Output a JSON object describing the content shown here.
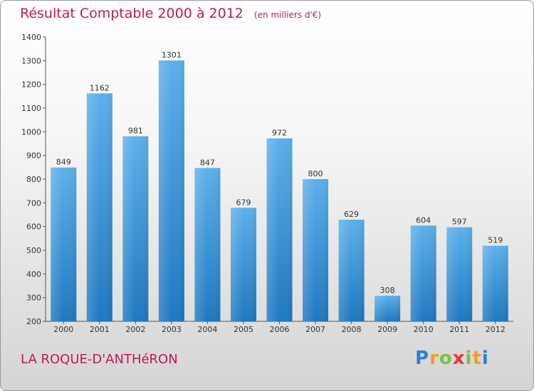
{
  "chart_data": {
    "type": "bar",
    "title": "Résultat Comptable 2000 à 2012",
    "subtitle": "(en milliers d'€)",
    "categories": [
      "2000",
      "2001",
      "2002",
      "2003",
      "2004",
      "2005",
      "2006",
      "2007",
      "2008",
      "2009",
      "2010",
      "2011",
      "2012"
    ],
    "values": [
      849,
      1162,
      981,
      1301,
      847,
      679,
      972,
      800,
      629,
      308,
      604,
      597,
      519
    ],
    "ylim": [
      200,
      1400
    ],
    "yticks": [
      200,
      300,
      400,
      500,
      600,
      700,
      800,
      900,
      1000,
      1100,
      1200,
      1300,
      1400
    ],
    "data_labels": true,
    "grid": false,
    "bar_color": "#3d98de",
    "bar_color_light": "#5db0ea",
    "bar_color_dark": "#1f78c0"
  },
  "footer": {
    "town": "LA ROQUE-D'ANTHéRON"
  },
  "logo": {
    "letters": [
      {
        "ch": "P",
        "color": "#2d7fd8"
      },
      {
        "ch": "r",
        "color": "#f3a01a"
      },
      {
        "ch": "o",
        "color": "#7cc142"
      },
      {
        "ch": "x",
        "color": "#e53935"
      },
      {
        "ch": "i",
        "color": "#7cc142"
      },
      {
        "ch": "t",
        "color": "#f3a01a"
      },
      {
        "ch": "i",
        "color": "#2d7fd8"
      }
    ]
  },
  "colors": {
    "title": "#c2185b",
    "axis": "#555555"
  }
}
